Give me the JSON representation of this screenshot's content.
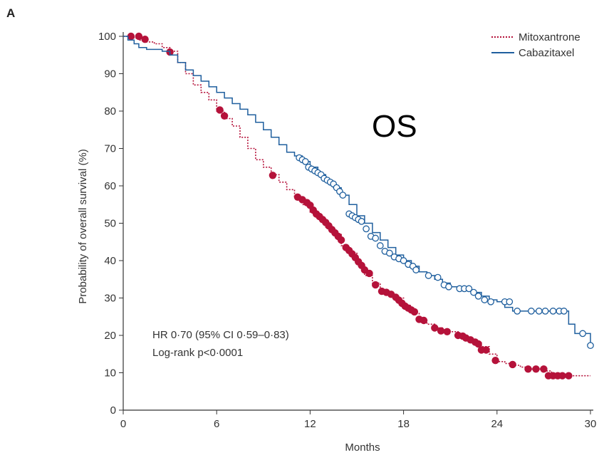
{
  "chart_data": {
    "type": "line",
    "panel_label": "A",
    "annotation": "OS",
    "xlabel": "Months",
    "ylabel": "Probability of overall survival (%)",
    "xlim": [
      0,
      30
    ],
    "ylim": [
      0,
      100
    ],
    "xticks": [
      0,
      6,
      12,
      18,
      24,
      30
    ],
    "yticks": [
      0,
      10,
      20,
      30,
      40,
      50,
      60,
      70,
      80,
      90,
      100
    ],
    "grid": false,
    "legend_position": "top-right",
    "stats": [
      "HR 0·70 (95% CI 0·59–0·83)",
      "Log-rank p<0·0001"
    ],
    "series": [
      {
        "name": "Mitoxantrone",
        "color": "#b5123a",
        "style": "dotted",
        "censor_marker": "filled-circle",
        "x": [
          0,
          0.3,
          0.7,
          1,
          1.5,
          2,
          2.5,
          3,
          3.5,
          4,
          4.5,
          5,
          5.5,
          6,
          6.5,
          7,
          7.5,
          8,
          8.5,
          9,
          9.5,
          10,
          10.5,
          11,
          11.5,
          12,
          12.5,
          13,
          13.5,
          14,
          14.5,
          15,
          15.5,
          16,
          16.5,
          17,
          17.5,
          18,
          18.5,
          19,
          19.5,
          20,
          20.5,
          21,
          21.5,
          22,
          22.5,
          23,
          23.5,
          24,
          24.5,
          25,
          25.5,
          26,
          26.5,
          27,
          27.5,
          28,
          28.5,
          29,
          29.5,
          30
        ],
        "y": [
          100,
          100,
          99.5,
          99,
          98.5,
          98,
          97,
          96,
          93,
          90,
          87,
          85,
          83,
          80,
          78,
          76,
          73,
          70,
          67,
          65,
          63,
          61,
          59,
          57,
          55,
          53,
          51,
          49,
          47,
          44,
          42,
          39,
          36,
          34,
          32,
          31,
          30,
          28,
          26,
          24,
          23,
          22,
          21,
          21,
          20,
          19,
          18,
          17,
          15,
          13,
          12.5,
          12,
          11.5,
          11,
          11,
          10.5,
          9.5,
          9.3,
          9.2,
          9.2,
          9.2,
          9.2
        ],
        "censored": [
          [
            0.5,
            100
          ],
          [
            1,
            100
          ],
          [
            1.4,
            99.2
          ],
          [
            3,
            95.8
          ],
          [
            6.2,
            80.3
          ],
          [
            6.5,
            78.7
          ],
          [
            9.6,
            62.8
          ],
          [
            11.2,
            57
          ],
          [
            11.5,
            56.3
          ],
          [
            11.8,
            55.5
          ],
          [
            12,
            54.8
          ],
          [
            12.2,
            53.5
          ],
          [
            12.4,
            52.5
          ],
          [
            12.6,
            51.8
          ],
          [
            12.8,
            51
          ],
          [
            13,
            50.2
          ],
          [
            13.2,
            49.3
          ],
          [
            13.4,
            48.3
          ],
          [
            13.6,
            47.4
          ],
          [
            13.8,
            46.5
          ],
          [
            14,
            45.5
          ],
          [
            14.3,
            43.5
          ],
          [
            14.5,
            42.7
          ],
          [
            14.7,
            41.8
          ],
          [
            14.9,
            40.8
          ],
          [
            15.1,
            39.7
          ],
          [
            15.3,
            38.7
          ],
          [
            15.5,
            37.5
          ],
          [
            15.8,
            36.6
          ],
          [
            16.2,
            33.5
          ],
          [
            16.6,
            31.8
          ],
          [
            16.9,
            31.5
          ],
          [
            17.2,
            31
          ],
          [
            17.5,
            30.2
          ],
          [
            17.7,
            29.4
          ],
          [
            17.9,
            28.6
          ],
          [
            18.1,
            27.8
          ],
          [
            18.3,
            27.3
          ],
          [
            18.5,
            26.8
          ],
          [
            18.7,
            26.3
          ],
          [
            19,
            24.3
          ],
          [
            19.3,
            24
          ],
          [
            20,
            22
          ],
          [
            20.4,
            21.2
          ],
          [
            20.8,
            21
          ],
          [
            21.5,
            20
          ],
          [
            21.8,
            19.8
          ],
          [
            22,
            19.3
          ],
          [
            22.3,
            18.8
          ],
          [
            22.6,
            18.2
          ],
          [
            22.8,
            17.7
          ],
          [
            23,
            16.1
          ],
          [
            23.3,
            16.1
          ],
          [
            23.9,
            13.3
          ],
          [
            25,
            12.2
          ],
          [
            26,
            11
          ],
          [
            26.5,
            11
          ],
          [
            27,
            11
          ],
          [
            27.3,
            9.2
          ],
          [
            27.6,
            9.2
          ],
          [
            27.9,
            9.2
          ],
          [
            28.2,
            9.2
          ],
          [
            28.6,
            9.2
          ]
        ]
      },
      {
        "name": "Cabazitaxel",
        "color": "#1f5f9e",
        "style": "solid",
        "censor_marker": "open-circle",
        "x": [
          0,
          0.3,
          0.7,
          1,
          1.5,
          2,
          2.5,
          3,
          3.5,
          4,
          4.5,
          5,
          5.5,
          6,
          6.5,
          7,
          7.5,
          8,
          8.5,
          9,
          9.5,
          10,
          10.5,
          11,
          11.5,
          12,
          12.5,
          13,
          13.5,
          14,
          14.5,
          15,
          15.5,
          16,
          16.5,
          17,
          17.5,
          18,
          18.5,
          19,
          19.5,
          20,
          20.5,
          21,
          21.5,
          22,
          22.5,
          23,
          23.5,
          24,
          24.5,
          25,
          25.5,
          26,
          26.5,
          27,
          27.5,
          28,
          28.3,
          28.6,
          29,
          29.5,
          30
        ],
        "y": [
          100,
          99,
          98,
          97,
          96.5,
          96.5,
          96,
          95,
          93,
          91,
          89.5,
          88,
          86.5,
          85,
          83.5,
          82,
          80.5,
          79,
          77,
          75,
          73,
          71,
          69,
          68,
          66.5,
          65,
          63,
          61,
          59.5,
          57.5,
          55,
          52,
          50,
          47.5,
          45.5,
          43.5,
          41.5,
          40,
          38.5,
          37,
          36,
          35,
          34,
          33,
          32.5,
          32,
          31.5,
          30.5,
          29.5,
          29,
          27.5,
          26.5,
          26.5,
          26.5,
          26.5,
          26.5,
          26.5,
          26.5,
          26.5,
          23,
          20.5,
          20.5,
          17.3
        ],
        "censored": [
          [
            11.3,
            67.5
          ],
          [
            11.5,
            67
          ],
          [
            11.7,
            66.5
          ],
          [
            11.9,
            65
          ],
          [
            12.1,
            64.5
          ],
          [
            12.3,
            64
          ],
          [
            12.5,
            63.5
          ],
          [
            12.7,
            63
          ],
          [
            12.9,
            62
          ],
          [
            13.1,
            61.5
          ],
          [
            13.3,
            61
          ],
          [
            13.5,
            60.5
          ],
          [
            13.7,
            59.5
          ],
          [
            13.9,
            58.5
          ],
          [
            14.1,
            57.5
          ],
          [
            14.5,
            52.5
          ],
          [
            14.7,
            52
          ],
          [
            14.9,
            51.5
          ],
          [
            15.1,
            51
          ],
          [
            15.3,
            50.5
          ],
          [
            15.6,
            48.5
          ],
          [
            15.9,
            46.5
          ],
          [
            16.2,
            46
          ],
          [
            16.5,
            44
          ],
          [
            16.8,
            42.5
          ],
          [
            17.1,
            42
          ],
          [
            17.4,
            41
          ],
          [
            17.7,
            40.5
          ],
          [
            18,
            40
          ],
          [
            18.3,
            39
          ],
          [
            18.6,
            38.5
          ],
          [
            18.8,
            37.5
          ],
          [
            19.6,
            36
          ],
          [
            20.2,
            35.5
          ],
          [
            20.6,
            33.5
          ],
          [
            20.9,
            33
          ],
          [
            21.6,
            32.5
          ],
          [
            21.9,
            32.5
          ],
          [
            22.2,
            32.5
          ],
          [
            22.5,
            31.5
          ],
          [
            22.8,
            30.5
          ],
          [
            23.2,
            29.5
          ],
          [
            23.6,
            29
          ],
          [
            24.5,
            29
          ],
          [
            24.8,
            29
          ],
          [
            25.3,
            26.5
          ],
          [
            26.2,
            26.5
          ],
          [
            26.7,
            26.5
          ],
          [
            27.1,
            26.5
          ],
          [
            27.6,
            26.5
          ],
          [
            28,
            26.5
          ],
          [
            28.3,
            26.5
          ],
          [
            29.5,
            20.5
          ],
          [
            30,
            17.3
          ]
        ]
      }
    ]
  }
}
